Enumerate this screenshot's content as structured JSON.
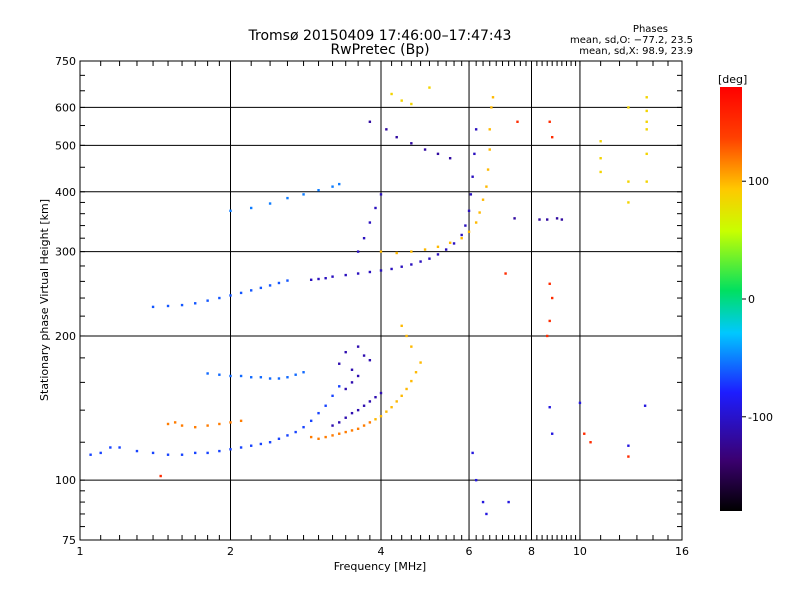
{
  "chart_data": {
    "type": "scatter",
    "title": "Tromsø 20150409 17:46:00–17:47:43",
    "subtitle": "RwPretec (Bp)",
    "xlabel": "Frequency [MHz]",
    "ylabel": "Stationary phase Virtual Height [km]",
    "x_scale": "log",
    "y_scale": "log",
    "xlim": [
      1,
      16
    ],
    "ylim": [
      75,
      750
    ],
    "x_ticks": [
      1,
      2,
      4,
      6,
      8,
      10,
      16
    ],
    "y_ticks": [
      75,
      100,
      200,
      300,
      400,
      500,
      600,
      750
    ],
    "grid": true,
    "stats": {
      "heading": "Phases",
      "o_line": "mean, sd,O: −77.2, 23.5",
      "x_line": "mean, sd,X:  98.9, 23.9"
    },
    "colorbar": {
      "label": "[deg]",
      "ticks": [
        100,
        0,
        -100
      ],
      "range": [
        -180,
        180
      ],
      "colors": [
        "#000000",
        "#3b0070",
        "#1d1dff",
        "#00c8ff",
        "#00e060",
        "#c8ff00",
        "#ffc800",
        "#ff4000",
        "#ff0000"
      ]
    },
    "series": [
      {
        "trace": "o-lower-cyan",
        "phase": -80,
        "points": [
          [
            1.05,
            113
          ],
          [
            1.1,
            114
          ],
          [
            1.15,
            117
          ],
          [
            1.2,
            117
          ],
          [
            1.3,
            115
          ],
          [
            1.4,
            114
          ],
          [
            1.5,
            113
          ],
          [
            1.6,
            113
          ],
          [
            1.7,
            114
          ],
          [
            1.8,
            114
          ],
          [
            1.9,
            115
          ],
          [
            2.0,
            116
          ],
          [
            2.1,
            117
          ],
          [
            2.2,
            118
          ],
          [
            2.3,
            119
          ],
          [
            2.4,
            120
          ],
          [
            2.5,
            122
          ],
          [
            2.6,
            124
          ],
          [
            2.7,
            126
          ],
          [
            2.8,
            129
          ],
          [
            2.9,
            133
          ],
          [
            3.0,
            138
          ],
          [
            3.1,
            143
          ],
          [
            3.2,
            150
          ],
          [
            3.3,
            157
          ]
        ]
      },
      {
        "trace": "o-lower-blue",
        "phase": -115,
        "points": [
          [
            3.2,
            130
          ],
          [
            3.3,
            132
          ],
          [
            3.4,
            135
          ],
          [
            3.5,
            138
          ],
          [
            3.6,
            140
          ],
          [
            3.7,
            143
          ],
          [
            3.8,
            146
          ],
          [
            3.9,
            149
          ],
          [
            4.0,
            152
          ],
          [
            3.4,
            155
          ],
          [
            3.5,
            160
          ],
          [
            3.6,
            165
          ],
          [
            3.5,
            170
          ],
          [
            3.3,
            175
          ],
          [
            3.4,
            185
          ],
          [
            3.6,
            190
          ],
          [
            3.7,
            182
          ],
          [
            3.8,
            178
          ]
        ]
      },
      {
        "trace": "x-lower-orange",
        "phase": 115,
        "points": [
          [
            1.5,
            131
          ],
          [
            1.55,
            132
          ],
          [
            1.6,
            130
          ],
          [
            1.7,
            129
          ],
          [
            1.8,
            130
          ],
          [
            1.9,
            131
          ],
          [
            2.0,
            132
          ],
          [
            2.1,
            133
          ],
          [
            2.9,
            123
          ],
          [
            3.0,
            122
          ],
          [
            3.1,
            123
          ],
          [
            3.2,
            124
          ],
          [
            3.3,
            125
          ],
          [
            3.4,
            126
          ],
          [
            3.5,
            127
          ],
          [
            3.6,
            128
          ],
          [
            3.7,
            130
          ],
          [
            3.8,
            132
          ]
        ]
      },
      {
        "trace": "x-lower-yellow",
        "phase": 95,
        "points": [
          [
            3.9,
            134
          ],
          [
            4.0,
            136
          ],
          [
            4.1,
            139
          ],
          [
            4.2,
            142
          ],
          [
            4.3,
            146
          ],
          [
            4.4,
            150
          ],
          [
            4.5,
            155
          ],
          [
            4.6,
            161
          ],
          [
            4.7,
            168
          ],
          [
            4.8,
            176
          ],
          [
            4.6,
            190
          ],
          [
            4.5,
            200
          ],
          [
            4.4,
            210
          ]
        ]
      },
      {
        "trace": "o-lower-mid-cyan",
        "phase": -70,
        "points": [
          [
            1.8,
            167
          ],
          [
            1.9,
            166
          ],
          [
            2.0,
            165
          ],
          [
            2.1,
            165
          ],
          [
            2.2,
            164
          ],
          [
            2.3,
            164
          ],
          [
            2.4,
            163
          ],
          [
            2.5,
            163
          ],
          [
            2.6,
            164
          ],
          [
            2.7,
            166
          ],
          [
            2.8,
            168
          ]
        ]
      },
      {
        "trace": "o-upper-cyan",
        "phase": -75,
        "points": [
          [
            1.4,
            230
          ],
          [
            1.5,
            231
          ],
          [
            1.6,
            232
          ],
          [
            1.7,
            234
          ],
          [
            1.8,
            237
          ],
          [
            1.9,
            240
          ],
          [
            2.0,
            243
          ],
          [
            2.1,
            246
          ],
          [
            2.2,
            249
          ],
          [
            2.3,
            252
          ],
          [
            2.4,
            255
          ],
          [
            2.5,
            258
          ],
          [
            2.6,
            261
          ]
        ]
      },
      {
        "trace": "o-upper-blue",
        "phase": -110,
        "points": [
          [
            2.9,
            262
          ],
          [
            3.0,
            263
          ],
          [
            3.1,
            264
          ],
          [
            3.2,
            266
          ],
          [
            3.4,
            268
          ],
          [
            3.6,
            270
          ],
          [
            3.8,
            272
          ],
          [
            4.0,
            274
          ],
          [
            4.2,
            276
          ],
          [
            4.4,
            279
          ],
          [
            4.6,
            282
          ],
          [
            4.8,
            286
          ],
          [
            5.0,
            290
          ],
          [
            5.2,
            296
          ],
          [
            5.4,
            303
          ],
          [
            5.6,
            312
          ],
          [
            5.8,
            325
          ],
          [
            5.9,
            340
          ],
          [
            6.0,
            365
          ],
          [
            6.05,
            395
          ],
          [
            6.1,
            430
          ],
          [
            6.15,
            480
          ],
          [
            6.2,
            540
          ],
          [
            3.6,
            300
          ],
          [
            3.7,
            320
          ],
          [
            3.8,
            345
          ],
          [
            3.9,
            370
          ],
          [
            4.0,
            395
          ]
        ]
      },
      {
        "trace": "x-upper-yellow",
        "phase": 95,
        "points": [
          [
            4.0,
            300
          ],
          [
            4.3,
            298
          ],
          [
            4.6,
            300
          ],
          [
            4.9,
            303
          ],
          [
            5.2,
            307
          ],
          [
            5.5,
            313
          ],
          [
            5.8,
            320
          ],
          [
            6.0,
            330
          ],
          [
            6.2,
            345
          ],
          [
            6.3,
            362
          ],
          [
            6.4,
            385
          ],
          [
            6.5,
            410
          ],
          [
            6.55,
            445
          ],
          [
            6.6,
            490
          ],
          [
            6.6,
            540
          ],
          [
            6.65,
            600
          ],
          [
            6.7,
            630
          ]
        ]
      },
      {
        "trace": "o-high-cyan",
        "phase": -65,
        "points": [
          [
            2.0,
            365
          ],
          [
            2.2,
            370
          ],
          [
            2.4,
            378
          ],
          [
            2.6,
            388
          ],
          [
            2.8,
            395
          ],
          [
            3.0,
            403
          ],
          [
            3.2,
            410
          ],
          [
            3.3,
            415
          ]
        ]
      },
      {
        "trace": "o-sparse-blue",
        "phase": -120,
        "points": [
          [
            3.8,
            560
          ],
          [
            4.1,
            540
          ],
          [
            4.3,
            520
          ],
          [
            4.6,
            505
          ],
          [
            4.9,
            490
          ],
          [
            5.2,
            480
          ],
          [
            5.5,
            470
          ],
          [
            8.3,
            350
          ],
          [
            8.6,
            350
          ],
          [
            9.0,
            352
          ],
          [
            7.4,
            352
          ],
          [
            9.2,
            350
          ]
        ]
      },
      {
        "trace": "x-sparse-yellow",
        "phase": 80,
        "points": [
          [
            4.2,
            640
          ],
          [
            4.4,
            620
          ],
          [
            4.6,
            610
          ],
          [
            5.0,
            660
          ],
          [
            11.0,
            510
          ],
          [
            11.0,
            470
          ],
          [
            11.0,
            440
          ],
          [
            12.5,
            600
          ],
          [
            12.5,
            420
          ],
          [
            12.5,
            380
          ],
          [
            13.6,
            630
          ],
          [
            13.6,
            590
          ],
          [
            13.6,
            560
          ],
          [
            13.6,
            540
          ],
          [
            13.6,
            480
          ],
          [
            13.6,
            420
          ]
        ]
      },
      {
        "trace": "o-scatter-low",
        "phase": -100,
        "points": [
          [
            6.2,
            100
          ],
          [
            6.4,
            90
          ],
          [
            6.5,
            85
          ],
          [
            7.2,
            90
          ],
          [
            6.1,
            114
          ],
          [
            8.7,
            142
          ],
          [
            8.8,
            125
          ],
          [
            10.0,
            145
          ],
          [
            13.5,
            143
          ],
          [
            12.5,
            118
          ]
        ]
      },
      {
        "trace": "x-scatter-red",
        "phase": 150,
        "points": [
          [
            8.7,
            560
          ],
          [
            8.8,
            520
          ],
          [
            7.5,
            560
          ],
          [
            8.6,
            200
          ],
          [
            8.7,
            215
          ],
          [
            8.8,
            240
          ],
          [
            8.7,
            257
          ],
          [
            7.1,
            270
          ],
          [
            12.5,
            112
          ],
          [
            10.2,
            125
          ],
          [
            10.5,
            120
          ],
          [
            1.45,
            102
          ]
        ]
      }
    ]
  }
}
